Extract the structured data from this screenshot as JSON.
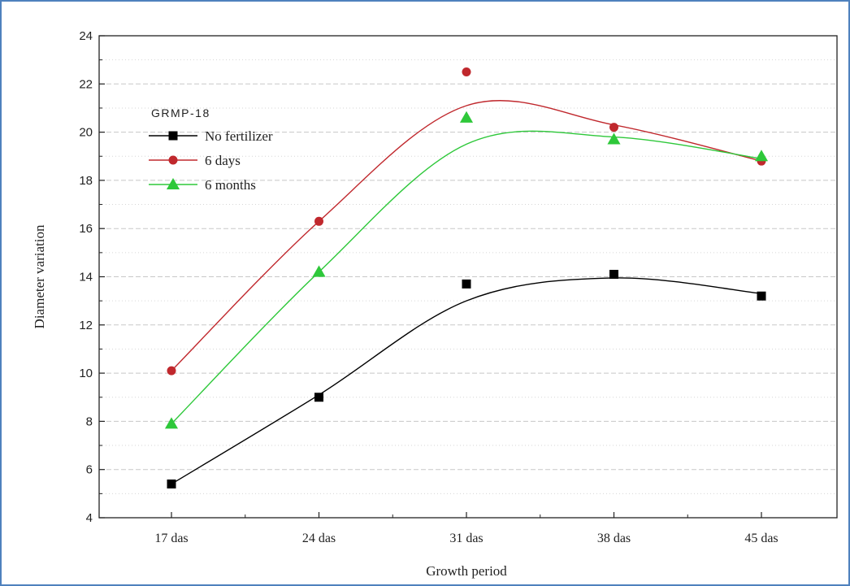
{
  "chart_data": {
    "type": "line",
    "title": "",
    "xlabel": "Growth period",
    "ylabel": "Diameter variation",
    "categories": [
      "17 das",
      "24 das",
      "31 das",
      "38 das",
      "45 das"
    ],
    "ylim": [
      4,
      24
    ],
    "yticks": [
      4,
      6,
      8,
      10,
      12,
      14,
      16,
      18,
      20,
      22,
      24
    ],
    "grid": true,
    "legend_title": "GRMP-18",
    "legend_position": "top-left",
    "series": [
      {
        "name": "No fertilizer",
        "values": [
          5.4,
          9.0,
          13.7,
          14.1,
          13.2
        ],
        "fit": [
          5.4,
          9.1,
          13.0,
          13.95,
          13.3
        ],
        "color": "#000000",
        "line_color": "#000000",
        "marker": "square"
      },
      {
        "name": "6 days",
        "values": [
          10.1,
          16.3,
          22.5,
          20.2,
          18.8
        ],
        "fit": [
          10.1,
          16.3,
          21.1,
          20.3,
          18.8
        ],
        "color": "#c0282d",
        "line_color": "#c0282d",
        "marker": "circle"
      },
      {
        "name": "6 months",
        "values": [
          7.9,
          14.2,
          20.6,
          19.7,
          19.0
        ],
        "fit": [
          7.9,
          14.2,
          19.5,
          19.8,
          18.9
        ],
        "color": "#2ec83a",
        "line_color": "#2ec83a",
        "marker": "triangle"
      }
    ]
  }
}
